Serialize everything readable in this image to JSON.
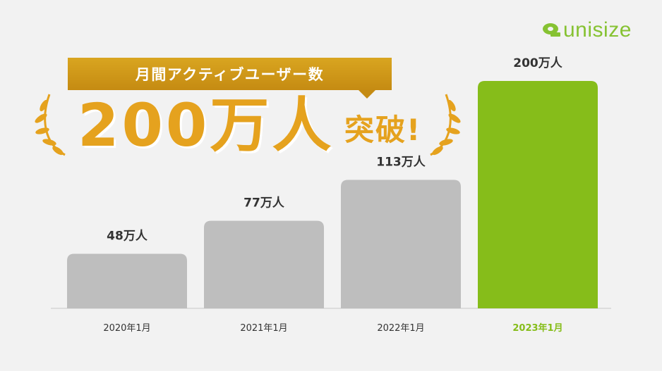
{
  "brand": {
    "name": "unisize",
    "color": "#86c232"
  },
  "headline": {
    "label": "月間アクティブユーザー数",
    "big_number": "200万人",
    "suffix": "突破!",
    "accent_color": "#e5a21e"
  },
  "chart_data": {
    "type": "bar",
    "categories": [
      "2020年1月",
      "2021年1月",
      "2022年1月",
      "2023年1月"
    ],
    "values": [
      48,
      77,
      113,
      200
    ],
    "value_labels": [
      "48万人",
      "77万人",
      "113万人",
      "200万人"
    ],
    "unit": "万人",
    "ylim": [
      0,
      200
    ],
    "grid": false,
    "bar_colors": [
      "#bebebe",
      "#bebebe",
      "#bebebe",
      "#86bd1a"
    ],
    "highlight_label_color": "#86bd1a"
  }
}
